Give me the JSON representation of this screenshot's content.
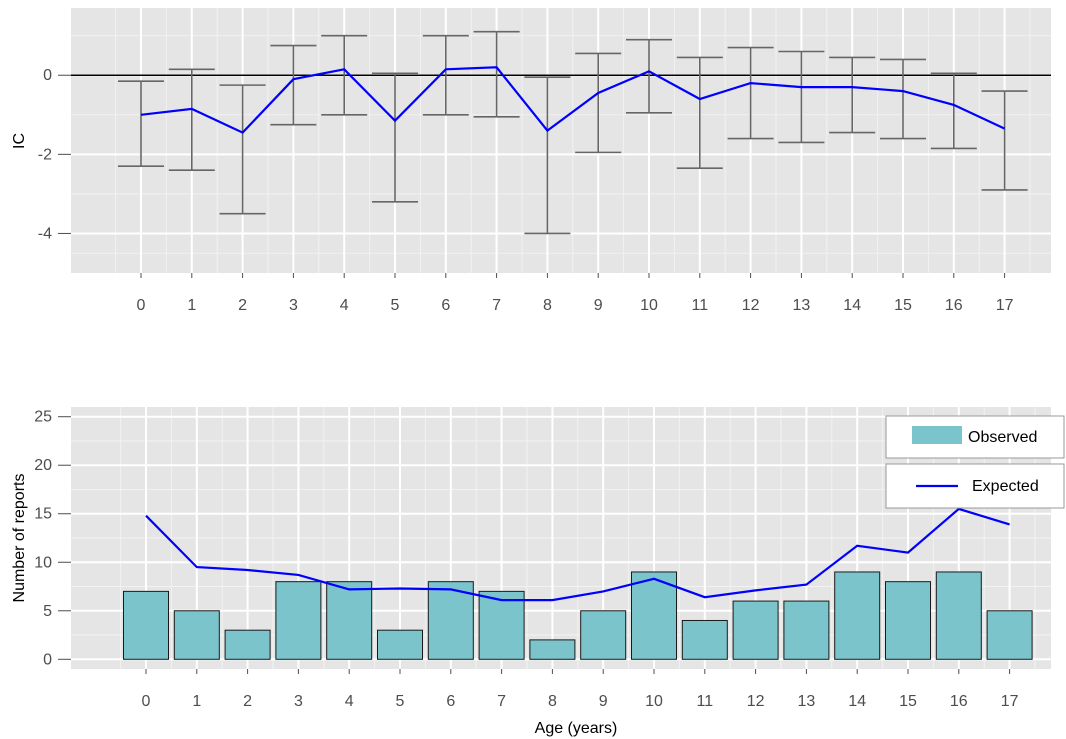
{
  "colors": {
    "panel_bg": "#e5e5e5",
    "grid_major": "#ffffff",
    "grid_minor": "#f2f2f2",
    "line": "#0000ff",
    "bar_fill": "#7bc4cb",
    "bar_stroke": "#1a1a1a",
    "errorbar": "#666666",
    "zero_line": "#000000"
  },
  "chart_data": [
    {
      "type": "line",
      "title": "",
      "xlabel": "",
      "ylabel": "IC",
      "x": [
        0,
        1,
        2,
        3,
        4,
        5,
        6,
        7,
        8,
        9,
        10,
        11,
        12,
        13,
        14,
        15,
        16,
        17
      ],
      "xlim": [
        -1,
        18
      ],
      "ylim": [
        -5,
        1.7
      ],
      "yticks": [
        0,
        -2,
        -4
      ],
      "ytick_labels": [
        "0",
        "-2",
        "-4"
      ],
      "xtick_labels": [
        "0",
        "1",
        "2",
        "3",
        "4",
        "5",
        "6",
        "7",
        "8",
        "9",
        "10",
        "11",
        "12",
        "13",
        "14",
        "15",
        "16",
        "17"
      ],
      "reference_line_y": 0,
      "grid": true,
      "series": [
        {
          "values": [
            -1.0,
            -0.85,
            -1.45,
            -0.1,
            0.15,
            -1.15,
            0.15,
            0.2,
            -1.4,
            -0.45,
            0.1,
            -0.6,
            -0.2,
            -0.3,
            -0.3,
            -0.4,
            -0.75,
            -1.35
          ],
          "lower": [
            -2.3,
            -2.4,
            -3.5,
            -1.25,
            -1.0,
            -3.2,
            -1.0,
            -1.05,
            -4.0,
            -1.95,
            -0.95,
            -2.35,
            -1.6,
            -1.7,
            -1.45,
            -1.6,
            -1.85,
            -2.9
          ],
          "upper": [
            -0.15,
            0.15,
            -0.25,
            0.75,
            1.0,
            0.05,
            1.0,
            1.1,
            -0.05,
            0.55,
            0.9,
            0.45,
            0.7,
            0.6,
            0.45,
            0.4,
            0.05,
            -0.4
          ]
        }
      ]
    },
    {
      "type": "bar",
      "title": "",
      "xlabel": "Age (years)",
      "ylabel": "Number of reports",
      "categories": [
        "0",
        "1",
        "2",
        "3",
        "4",
        "5",
        "6",
        "7",
        "8",
        "9",
        "10",
        "11",
        "12",
        "13",
        "14",
        "15",
        "16",
        "17"
      ],
      "xlim": [
        -1,
        18
      ],
      "ylim": [
        -1,
        26
      ],
      "yticks": [
        0,
        5,
        10,
        15,
        20,
        25
      ],
      "ytick_labels": [
        "0",
        "5",
        "10",
        "15",
        "20",
        "25"
      ],
      "grid": true,
      "legend_position": "top-right",
      "legend": {
        "observed_label": "Observed",
        "expected_label": "Expected"
      },
      "series": [
        {
          "name": "Observed",
          "type": "bar",
          "values": [
            7,
            5,
            3,
            8,
            8,
            3,
            8,
            7,
            2,
            5,
            9,
            4,
            6,
            6,
            9,
            8,
            9,
            5
          ]
        },
        {
          "name": "Expected",
          "type": "line",
          "values": [
            14.8,
            9.5,
            9.2,
            8.7,
            7.2,
            7.3,
            7.2,
            6.1,
            6.1,
            7.0,
            8.3,
            6.4,
            7.1,
            7.7,
            11.7,
            11.0,
            15.5,
            13.9
          ]
        }
      ]
    }
  ]
}
